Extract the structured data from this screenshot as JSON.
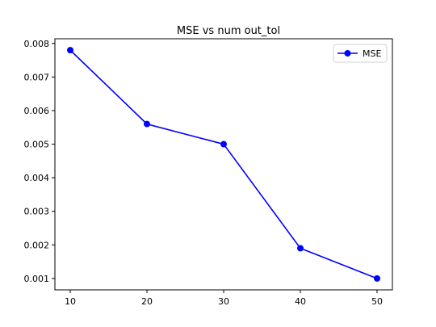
{
  "chart_data": {
    "type": "line",
    "title": "MSE vs num out_tol",
    "xlabel": "",
    "ylabel": "",
    "x": [
      10,
      20,
      30,
      40,
      50
    ],
    "series": [
      {
        "name": "MSE",
        "values": [
          0.0078,
          0.0056,
          0.005,
          0.0019,
          0.001
        ],
        "color": "#0000ff",
        "marker": "circle"
      }
    ],
    "xticks": [
      10,
      20,
      30,
      40,
      50
    ],
    "xtick_labels": [
      "10",
      "20",
      "30",
      "40",
      "50"
    ],
    "yticks": [
      0.001,
      0.002,
      0.003,
      0.004,
      0.005,
      0.006,
      0.007,
      0.008
    ],
    "ytick_labels": [
      "0.001",
      "0.002",
      "0.003",
      "0.004",
      "0.005",
      "0.006",
      "0.007",
      "0.008"
    ],
    "xlim": [
      8,
      52
    ],
    "ylim": [
      0.00066,
      0.00814
    ],
    "grid": false,
    "legend": {
      "position": "top-right"
    }
  }
}
